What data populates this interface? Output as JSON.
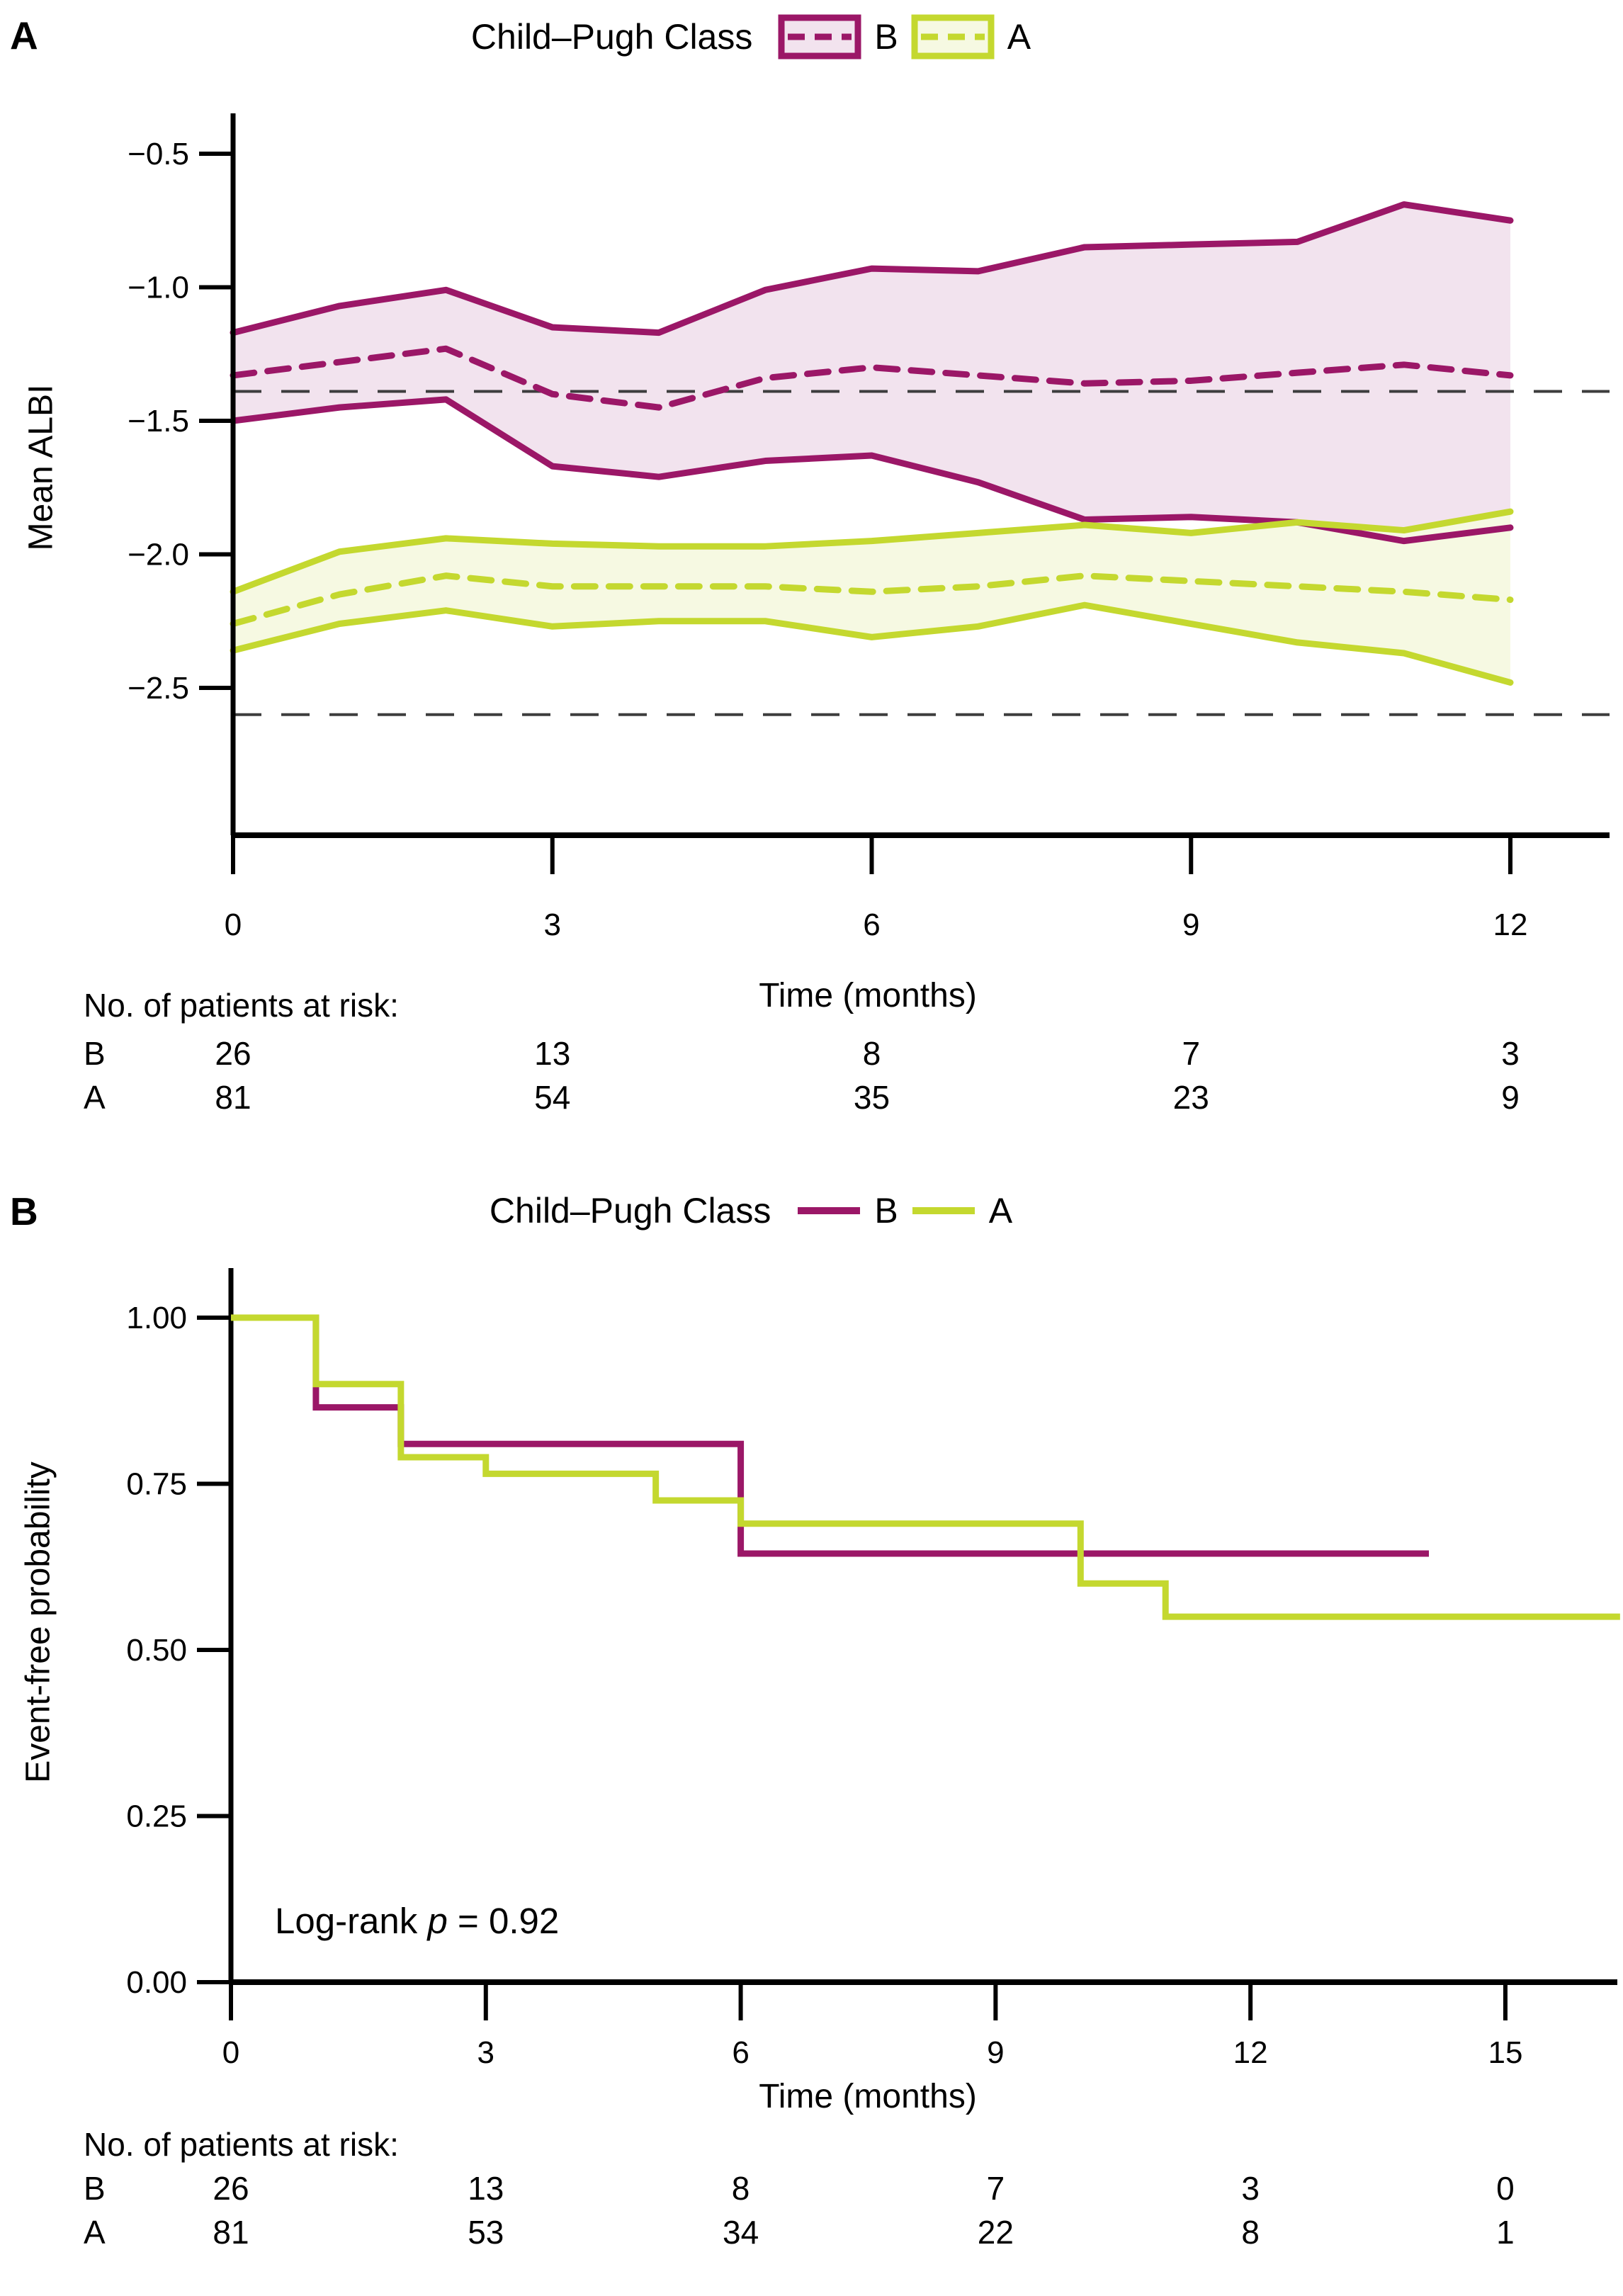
{
  "colors": {
    "b_line": "#9B1767",
    "b_fill": "#F2E3EE",
    "a_line": "#C4D82F",
    "a_fill": "#F6F9E2",
    "ref_dash": "#3d3d3d",
    "axis": "#000000"
  },
  "panelA": {
    "panel_label": "A",
    "legend": {
      "title": "Child–Pugh Class",
      "items": [
        {
          "label": "B"
        },
        {
          "label": "A"
        }
      ]
    },
    "ylabel": "Mean ALBI",
    "xlabel": "Time (months)",
    "risk_table": {
      "title": "No. of patients at risk:",
      "time_points": [
        0,
        3,
        6,
        9,
        12
      ],
      "rows": [
        {
          "label": "B",
          "values": [
            "26",
            "13",
            "8",
            "7",
            "3"
          ]
        },
        {
          "label": "A",
          "values": [
            "81",
            "54",
            "35",
            "23",
            "9"
          ]
        }
      ]
    }
  },
  "panelB": {
    "panel_label": "B",
    "legend": {
      "title": "Child–Pugh Class",
      "items": [
        {
          "label": "B"
        },
        {
          "label": "A"
        }
      ]
    },
    "ylabel": "Event-free probability",
    "xlabel": "Time (months)",
    "annotation": {
      "prefix": "Log-rank ",
      "p": "p",
      "suffix": " = 0.92"
    },
    "risk_table": {
      "title": "No. of patients at risk:",
      "time_points": [
        0,
        3,
        6,
        9,
        12,
        15
      ],
      "rows": [
        {
          "label": "B",
          "values": [
            "26",
            "13",
            "8",
            "7",
            "3",
            "0"
          ]
        },
        {
          "label": "A",
          "values": [
            "81",
            "53",
            "34",
            "22",
            "8",
            "1"
          ]
        }
      ]
    }
  },
  "chart_data": [
    {
      "panel": "A",
      "type": "line",
      "subtype": "mean-with-confidence-band",
      "title": "Child–Pugh Class",
      "xlabel": "Time (months)",
      "ylabel": "Mean ALBI",
      "xlim": [
        0,
        12.9
      ],
      "ylim": [
        -3.05,
        -0.35
      ],
      "x_ticks": [
        {
          "v": 0,
          "label": "0"
        },
        {
          "v": 3,
          "label": "3"
        },
        {
          "v": 6,
          "label": "6"
        },
        {
          "v": 9,
          "label": "9"
        },
        {
          "v": 12,
          "label": "12"
        }
      ],
      "y_ticks": [
        {
          "v": -0.5,
          "label": "−0.5"
        },
        {
          "v": -1.0,
          "label": "−1.0"
        },
        {
          "v": -1.5,
          "label": "−1.5"
        },
        {
          "v": -2.0,
          "label": "−2.0"
        },
        {
          "v": -2.5,
          "label": "−2.5"
        }
      ],
      "reference_lines": [
        {
          "v": -1.39,
          "style": "dashed",
          "note": "ALBI grade cutoff"
        },
        {
          "v": -2.6,
          "style": "dashed",
          "note": "ALBI grade cutoff"
        }
      ],
      "months": [
        0,
        1,
        2,
        3,
        4,
        5,
        6,
        7,
        8,
        9,
        10,
        11,
        12
      ],
      "series": [
        {
          "name": "B",
          "color": "#9B1767",
          "fill": "#F2E3EE",
          "mean": [
            -1.33,
            -1.28,
            -1.23,
            -1.4,
            -1.45,
            -1.34,
            -1.3,
            -1.33,
            -1.36,
            -1.35,
            -1.32,
            -1.29,
            -1.33
          ],
          "upper": [
            -1.17,
            -1.07,
            -1.01,
            -1.15,
            -1.17,
            -1.01,
            -0.93,
            -0.94,
            -0.85,
            -0.84,
            -0.83,
            -0.69,
            -0.75
          ],
          "lower": [
            -1.5,
            -1.45,
            -1.42,
            -1.67,
            -1.71,
            -1.65,
            -1.63,
            -1.73,
            -1.87,
            -1.86,
            -1.88,
            -1.95,
            -1.9
          ]
        },
        {
          "name": "A",
          "color": "#C4D82F",
          "fill": "#F6F9E2",
          "mean": [
            -2.26,
            -2.15,
            -2.08,
            -2.12,
            -2.12,
            -2.12,
            -2.14,
            -2.12,
            -2.08,
            -2.1,
            -2.12,
            -2.14,
            -2.17
          ],
          "upper": [
            -2.14,
            -1.99,
            -1.94,
            -1.96,
            -1.97,
            -1.97,
            -1.95,
            -1.92,
            -1.89,
            -1.92,
            -1.88,
            -1.91,
            -1.84
          ],
          "lower": [
            -2.36,
            -2.26,
            -2.21,
            -2.27,
            -2.25,
            -2.25,
            -2.31,
            -2.27,
            -2.19,
            -2.26,
            -2.33,
            -2.37,
            -2.48
          ]
        }
      ]
    },
    {
      "panel": "B",
      "type": "line",
      "subtype": "kaplan-meier-step",
      "title": "Child–Pugh Class",
      "xlabel": "Time (months)",
      "ylabel": "Event-free probability",
      "xlim": [
        0,
        16.35
      ],
      "ylim": [
        0,
        1.075
      ],
      "x_ticks": [
        {
          "v": 0,
          "label": "0"
        },
        {
          "v": 3,
          "label": "3"
        },
        {
          "v": 6,
          "label": "6"
        },
        {
          "v": 9,
          "label": "9"
        },
        {
          "v": 12,
          "label": "12"
        },
        {
          "v": 15,
          "label": "15"
        }
      ],
      "y_ticks": [
        {
          "v": 1.0,
          "label": "1.00"
        },
        {
          "v": 0.75,
          "label": "0.75"
        },
        {
          "v": 0.5,
          "label": "0.50"
        },
        {
          "v": 0.25,
          "label": "0.25"
        },
        {
          "v": 0.0,
          "label": "0.00"
        }
      ],
      "annotation": "Log-rank p = 0.92",
      "series": [
        {
          "name": "B",
          "color": "#9B1767",
          "times": [
            0,
            1,
            2,
            6
          ],
          "probs": [
            1.0,
            0.865,
            0.81,
            0.645
          ],
          "end": 14.1
        },
        {
          "name": "A",
          "color": "#C4D82F",
          "times": [
            0,
            1,
            2,
            3,
            5,
            6,
            10,
            11
          ],
          "probs": [
            1.0,
            0.9,
            0.79,
            0.765,
            0.725,
            0.69,
            0.6,
            0.55
          ],
          "end": 16.35
        }
      ]
    }
  ]
}
